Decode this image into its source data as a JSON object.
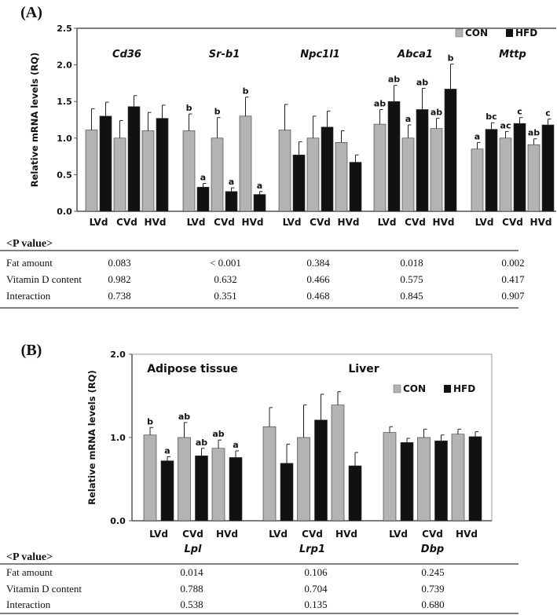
{
  "colors": {
    "con": "#b3b3b3",
    "hfd": "#111111",
    "axis": "#555555"
  },
  "chart_data": [
    {
      "panel_label": "(A)",
      "type": "bar",
      "ylabel": "Relative mRNA levels (RQ)",
      "ylim": [
        0,
        2.5
      ],
      "yticks": [
        "0.0",
        "0.5",
        "1.0",
        "1.5",
        "2.0",
        "2.5"
      ],
      "legend": [
        "CON",
        "HFD"
      ],
      "legend_position": "top-right",
      "subgroups": [
        "LVd",
        "CVd",
        "HVd"
      ],
      "genes": [
        {
          "name": "Cd36",
          "con": [
            1.11,
            1.0,
            1.1
          ],
          "con_err": [
            0.29,
            0.24,
            0.25
          ],
          "hfd": [
            1.3,
            1.43,
            1.27
          ],
          "hfd_err": [
            0.19,
            0.15,
            0.18
          ],
          "con_sig": [
            "",
            "",
            ""
          ],
          "hfd_sig": [
            "",
            "",
            ""
          ]
        },
        {
          "name": "Sr-b1",
          "con": [
            1.1,
            1.0,
            1.3
          ],
          "con_err": [
            0.23,
            0.28,
            0.26
          ],
          "hfd": [
            0.33,
            0.27,
            0.23
          ],
          "hfd_err": [
            0.05,
            0.05,
            0.04
          ],
          "con_sig": [
            "b",
            "b",
            "b"
          ],
          "hfd_sig": [
            "a",
            "a",
            "a"
          ]
        },
        {
          "name": "Npc1l1",
          "con": [
            1.11,
            1.0,
            0.94
          ],
          "con_err": [
            0.35,
            0.3,
            0.16
          ],
          "hfd": [
            0.77,
            1.15,
            0.67
          ],
          "hfd_err": [
            0.18,
            0.22,
            0.1
          ],
          "con_sig": [
            "",
            "",
            ""
          ],
          "hfd_sig": [
            "",
            "",
            ""
          ]
        },
        {
          "name": "Abca1",
          "con": [
            1.19,
            1.0,
            1.13
          ],
          "con_err": [
            0.2,
            0.18,
            0.14
          ],
          "hfd": [
            1.5,
            1.39,
            1.67
          ],
          "hfd_err": [
            0.22,
            0.29,
            0.34
          ],
          "con_sig": [
            "ab",
            "a",
            "ab"
          ],
          "hfd_sig": [
            "ab",
            "ab",
            "b"
          ]
        },
        {
          "name": "Mttp",
          "con": [
            0.85,
            1.0,
            0.91
          ],
          "con_err": [
            0.09,
            0.09,
            0.08
          ],
          "hfd": [
            1.12,
            1.2,
            1.18
          ],
          "hfd_err": [
            0.09,
            0.08,
            0.08
          ],
          "con_sig": [
            "a",
            "ac",
            "ab"
          ],
          "hfd_sig": [
            "bc",
            "c",
            "c"
          ]
        }
      ]
    },
    {
      "panel_label": "(B)",
      "type": "bar",
      "ylabel": "Relative mRNA levels (RQ)",
      "ylim": [
        0,
        2.0
      ],
      "yticks": [
        "0.0",
        "1.0",
        "2.0"
      ],
      "legend": [
        "CON",
        "HFD"
      ],
      "legend_position": "top-right",
      "tissue_labels": [
        "Adipose tissue",
        "Liver"
      ],
      "subgroups": [
        "LVd",
        "CVd",
        "HVd"
      ],
      "genes": [
        {
          "name": "Lpl",
          "con": [
            1.03,
            1.0,
            0.87
          ],
          "con_err": [
            0.09,
            0.18,
            0.1
          ],
          "hfd": [
            0.72,
            0.78,
            0.76
          ],
          "hfd_err": [
            0.05,
            0.09,
            0.08
          ],
          "con_sig": [
            "b",
            "ab",
            "ab"
          ],
          "hfd_sig": [
            "a",
            "ab",
            "a"
          ]
        },
        {
          "name": "Lrp1",
          "con": [
            1.13,
            1.0,
            1.39
          ],
          "con_err": [
            0.23,
            0.39,
            0.16
          ],
          "hfd": [
            0.69,
            1.21,
            0.66
          ],
          "hfd_err": [
            0.23,
            0.31,
            0.16
          ],
          "con_sig": [
            "",
            "",
            ""
          ],
          "hfd_sig": [
            "",
            "",
            ""
          ]
        },
        {
          "name": "Dbp",
          "con": [
            1.06,
            1.0,
            1.04
          ],
          "con_err": [
            0.07,
            0.1,
            0.06
          ],
          "hfd": [
            0.94,
            0.96,
            1.01
          ],
          "hfd_err": [
            0.05,
            0.07,
            0.06
          ],
          "con_sig": [
            "",
            "",
            ""
          ],
          "hfd_sig": [
            "",
            "",
            ""
          ]
        }
      ]
    }
  ],
  "tables": [
    {
      "title": "<P value>",
      "rows": [
        {
          "label": "Fat amount",
          "values": [
            "0.083",
            "< 0.001",
            "0.384",
            "0.018",
            "0.002"
          ]
        },
        {
          "label": "Vitamin D content",
          "values": [
            "0.982",
            "0.632",
            "0.466",
            "0.575",
            "0.417"
          ]
        },
        {
          "label": "Interaction",
          "values": [
            "0.738",
            "0.351",
            "0.468",
            "0.845",
            "0.907"
          ]
        }
      ]
    },
    {
      "title": "<P value>",
      "rows": [
        {
          "label": "Fat amount",
          "values": [
            "0.014",
            "0.106",
            "0.245"
          ]
        },
        {
          "label": "Vitamin D content",
          "values": [
            "0.788",
            "0.704",
            "0.739"
          ]
        },
        {
          "label": "Interaction",
          "values": [
            "0.538",
            "0.135",
            "0.680"
          ]
        }
      ]
    }
  ]
}
